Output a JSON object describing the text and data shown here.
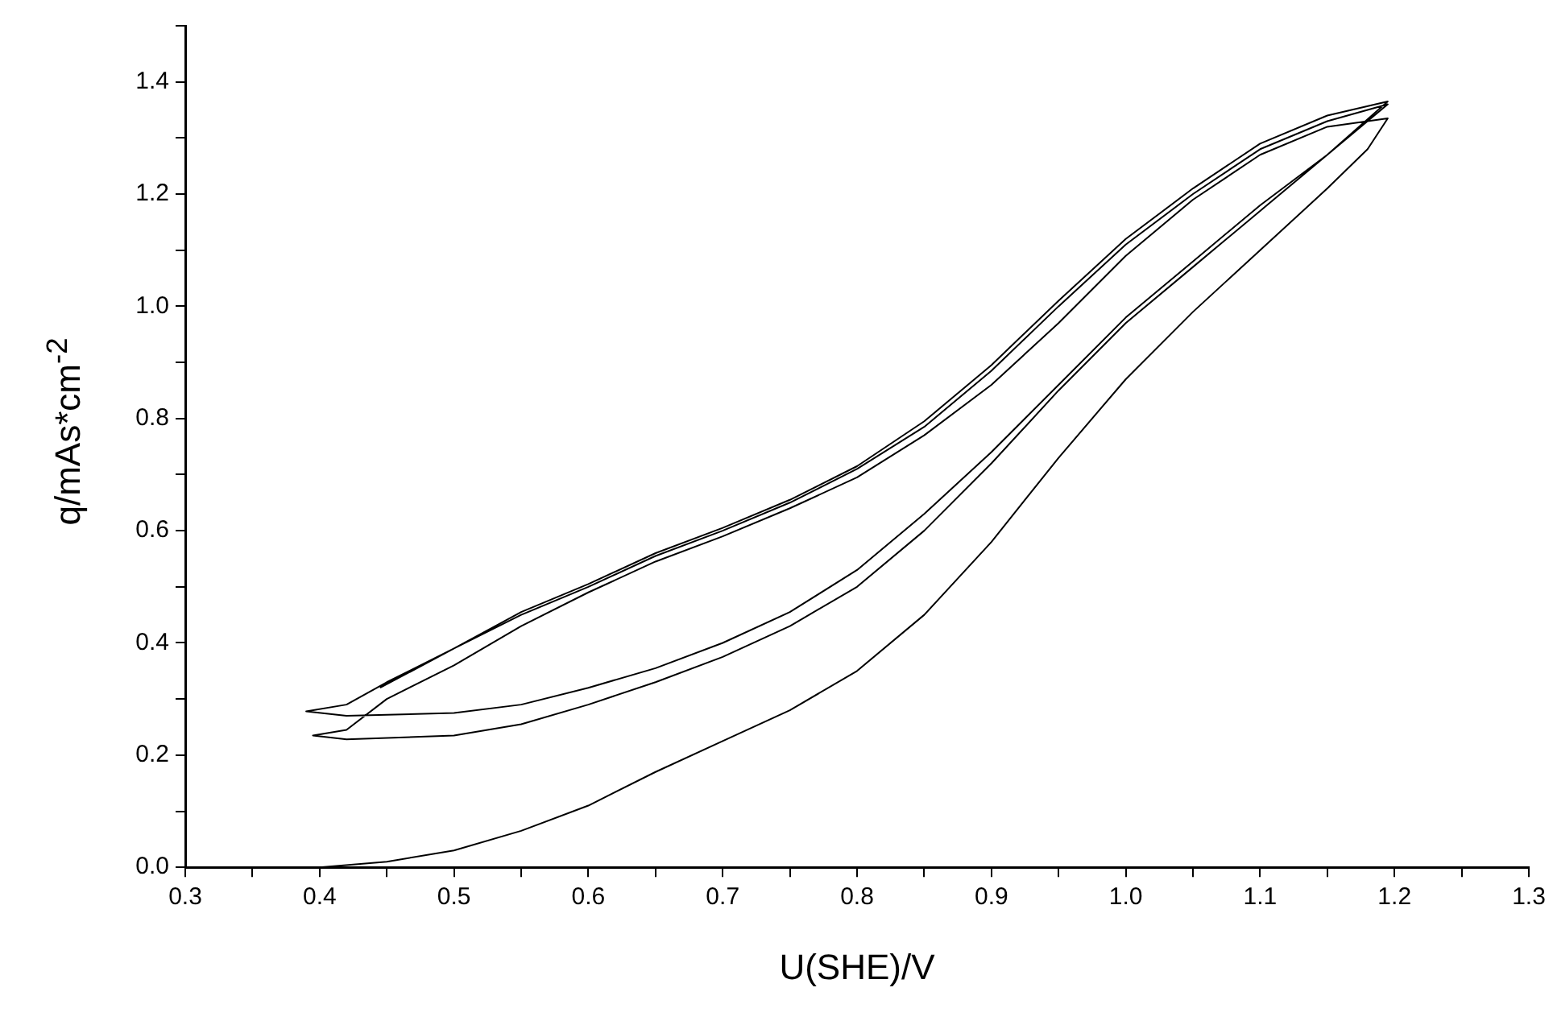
{
  "chart_data": {
    "type": "line",
    "xlabel": "U(SHE)/V",
    "ylabel": "q/mAs*cm$^{-2}$",
    "xlim": [
      0.3,
      1.3
    ],
    "ylim": [
      0,
      1.5
    ],
    "xticks": [
      0.3,
      {
        "value": 0.35,
        "label": null
      },
      0.4,
      {
        "value": 0.45,
        "label": null
      },
      0.5,
      {
        "value": 0.55,
        "label": null
      },
      0.6,
      {
        "value": 0.65,
        "label": null
      },
      0.7,
      {
        "value": 0.75,
        "label": null
      },
      0.8,
      {
        "value": 0.85,
        "label": null
      },
      0.9,
      {
        "value": 0.95,
        "label": null
      },
      {
        "value": 1.0,
        "label": "1.0"
      },
      {
        "value": 1.05,
        "label": null
      },
      1.1,
      {
        "value": 1.15,
        "label": null
      },
      1.2,
      {
        "value": 1.25,
        "label": null
      },
      1.3
    ],
    "yticks": [
      {
        "value": 0,
        "label": "0.0"
      },
      {
        "value": 0.1,
        "label": null
      },
      0.2,
      {
        "value": 0.3,
        "label": null
      },
      0.4,
      {
        "value": 0.5,
        "label": null
      },
      0.6,
      {
        "value": 0.7,
        "label": null
      },
      0.8,
      {
        "value": 0.9,
        "label": null
      },
      {
        "value": 1.0,
        "label": "1.0"
      },
      {
        "value": 1.1,
        "label": null
      },
      1.2,
      {
        "value": 1.3,
        "label": null
      },
      1.4,
      {
        "value": 1.5,
        "label": null
      }
    ],
    "grid": false,
    "legend": false,
    "marker": "none",
    "line_style": "solid",
    "series": [
      {
        "color": "#000000",
        "x": [
          0.4,
          0.45,
          0.5,
          0.55,
          0.6,
          0.65,
          0.7,
          0.75,
          0.8,
          0.85,
          0.9,
          0.95,
          1.0,
          1.05,
          1.1,
          1.15,
          1.18,
          1.195,
          1.15,
          1.1,
          1.05,
          1.0,
          0.95,
          0.9,
          0.85,
          0.8,
          0.75,
          0.7,
          0.65,
          0.6,
          0.55,
          0.5,
          0.45,
          0.42,
          0.395,
          0.42,
          0.5,
          0.55,
          0.6,
          0.65,
          0.7,
          0.75,
          0.8,
          0.85,
          0.9,
          0.95,
          1.0,
          1.05,
          1.1,
          1.15,
          1.195,
          1.15,
          1.1,
          1.05,
          1.0,
          0.95,
          0.9,
          0.85,
          0.8,
          0.75,
          0.7,
          0.65,
          0.6,
          0.55,
          0.5,
          0.45,
          0.42,
          0.39,
          0.42,
          0.5,
          0.55,
          0.6,
          0.65,
          0.7,
          0.75,
          0.8,
          0.85,
          0.9,
          0.95,
          1.0,
          1.05,
          1.1,
          1.15,
          1.195,
          1.15,
          1.1,
          1.05,
          1.0,
          0.95,
          0.9,
          0.85,
          0.8,
          0.75,
          0.7,
          0.65,
          0.6,
          0.55,
          0.5,
          0.445
        ],
        "values": [
          0.0,
          0.01,
          0.03,
          0.065,
          0.11,
          0.17,
          0.225,
          0.28,
          0.35,
          0.45,
          0.58,
          0.73,
          0.87,
          0.99,
          1.1,
          1.21,
          1.28,
          1.335,
          1.32,
          1.27,
          1.19,
          1.09,
          0.97,
          0.86,
          0.77,
          0.695,
          0.64,
          0.59,
          0.545,
          0.49,
          0.43,
          0.36,
          0.3,
          0.245,
          0.235,
          0.228,
          0.235,
          0.255,
          0.29,
          0.33,
          0.375,
          0.43,
          0.5,
          0.6,
          0.72,
          0.85,
          0.97,
          1.07,
          1.17,
          1.27,
          1.36,
          1.33,
          1.28,
          1.2,
          1.11,
          1.0,
          0.885,
          0.785,
          0.71,
          0.65,
          0.6,
          0.555,
          0.5,
          0.45,
          0.39,
          0.33,
          0.29,
          0.278,
          0.27,
          0.275,
          0.29,
          0.32,
          0.355,
          0.4,
          0.455,
          0.53,
          0.63,
          0.74,
          0.86,
          0.98,
          1.08,
          1.18,
          1.27,
          1.365,
          1.34,
          1.29,
          1.21,
          1.12,
          1.01,
          0.895,
          0.795,
          0.715,
          0.655,
          0.605,
          0.56,
          0.505,
          0.455,
          0.39,
          0.32
        ]
      }
    ]
  }
}
